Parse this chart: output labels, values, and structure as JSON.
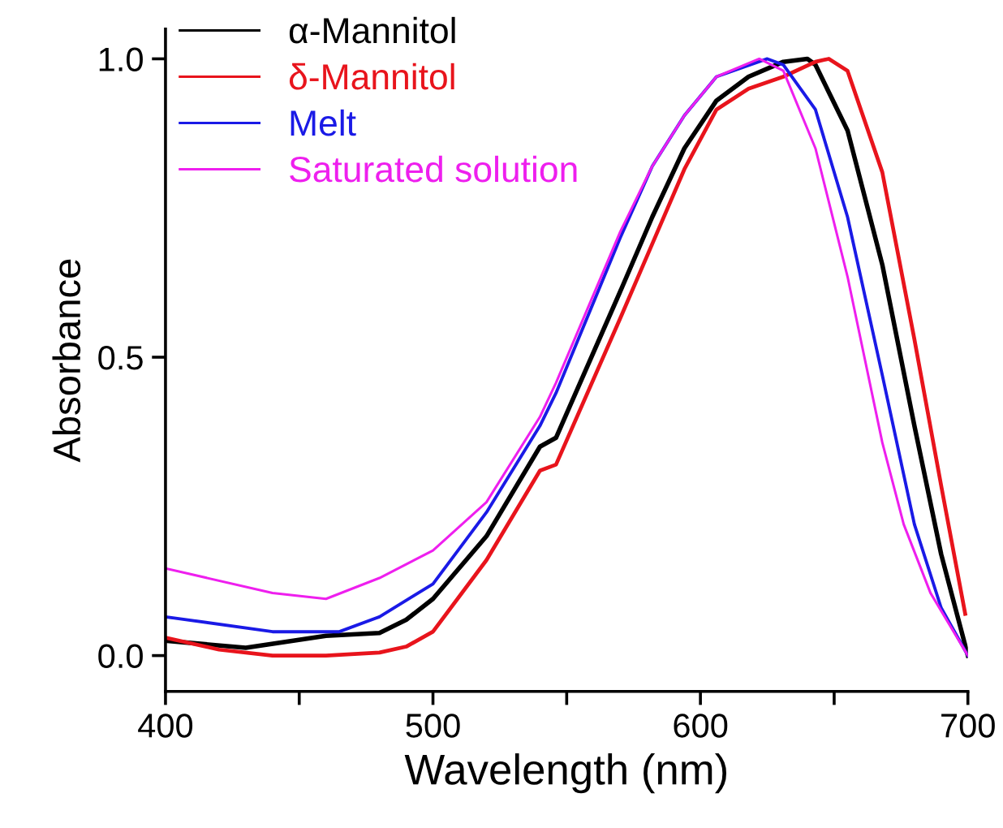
{
  "chart_data": {
    "type": "line",
    "xlabel": "Wavelength (nm)",
    "ylabel": "Absorbance",
    "xlim": [
      400,
      700
    ],
    "xticks": [
      400,
      {
        "value": 450,
        "label": null
      },
      500,
      {
        "value": 550,
        "label": null
      },
      600,
      {
        "value": 650,
        "label": null
      },
      700
    ],
    "ylim": [
      -0.06,
      1.05
    ],
    "yticks": [
      {
        "value": 0,
        "label": "0.0"
      },
      0.5,
      {
        "value": 1,
        "label": "1.0"
      }
    ],
    "grid": false,
    "legend": "top left",
    "marker": "none",
    "line_style": "solid",
    "series": [
      {
        "name": "α-Mannitol",
        "color": "#000000",
        "x": [
          400,
          430,
          460,
          480,
          490,
          500,
          520,
          540,
          546,
          570,
          582,
          594,
          606,
          618,
          631,
          640,
          643,
          655,
          668,
          680,
          690,
          700
        ],
        "values": [
          0.025,
          0.013,
          0.033,
          0.038,
          0.06,
          0.095,
          0.2,
          0.35,
          0.365,
          0.61,
          0.735,
          0.85,
          0.93,
          0.97,
          0.995,
          1.0,
          0.99,
          0.88,
          0.655,
          0.385,
          0.17,
          0.0
        ]
      },
      {
        "name": "δ-Mannitol",
        "color": "#e8141c",
        "x": [
          400,
          420,
          440,
          460,
          480,
          490,
          500,
          520,
          540,
          546,
          570,
          582,
          594,
          606,
          618,
          631,
          643,
          648,
          655,
          668,
          680,
          690,
          699
        ],
        "values": [
          0.03,
          0.01,
          0.0,
          0.0,
          0.005,
          0.015,
          0.04,
          0.16,
          0.31,
          0.32,
          0.565,
          0.69,
          0.815,
          0.915,
          0.95,
          0.97,
          0.995,
          1.0,
          0.98,
          0.81,
          0.53,
          0.285,
          0.07
        ]
      },
      {
        "name": "Melt",
        "color": "#1a1ae6",
        "x": [
          400,
          440,
          465,
          480,
          500,
          520,
          540,
          546,
          570,
          582,
          594,
          606,
          625,
          631,
          643,
          655,
          668,
          680,
          690,
          700
        ],
        "values": [
          0.065,
          0.04,
          0.04,
          0.065,
          0.12,
          0.24,
          0.385,
          0.44,
          0.7,
          0.82,
          0.905,
          0.97,
          1.0,
          0.99,
          0.915,
          0.735,
          0.47,
          0.22,
          0.08,
          0.0
        ]
      },
      {
        "name": "Saturated solution",
        "color": "#ee1fee",
        "x": [
          400,
          440,
          460,
          480,
          500,
          520,
          540,
          546,
          570,
          582,
          594,
          606,
          622,
          631,
          643,
          655,
          668,
          676,
          686,
          700
        ],
        "values": [
          0.146,
          0.105,
          0.095,
          0.13,
          0.176,
          0.257,
          0.4,
          0.457,
          0.71,
          0.82,
          0.905,
          0.97,
          1.0,
          0.98,
          0.85,
          0.635,
          0.357,
          0.22,
          0.105,
          0.0
        ]
      }
    ]
  }
}
